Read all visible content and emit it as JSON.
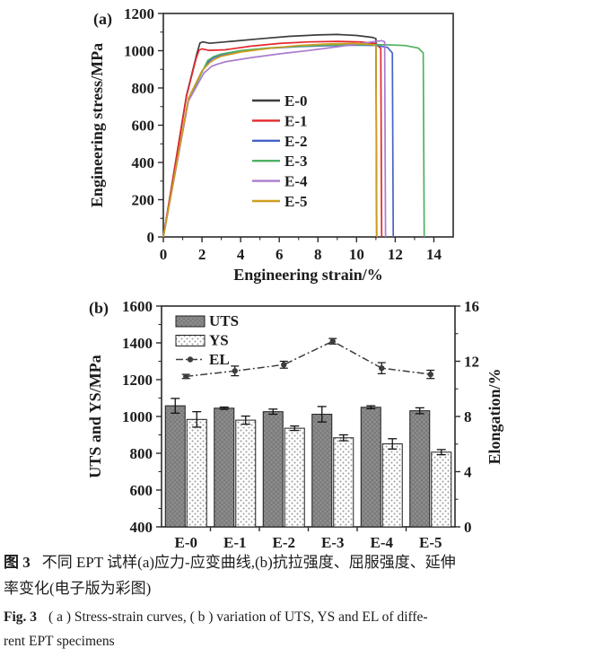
{
  "figure": {
    "caption": {
      "zh": {
        "label": "图 3",
        "line1": "不同 EPT 试样(a)应力-应变曲线,(b)抗拉强度、屈服强度、延伸",
        "line2": "率变化(电子版为彩图)"
      },
      "en": {
        "label": "Fig. 3",
        "line1": "( a ) Stress-strain curves, ( b ) variation of UTS, YS and EL of diffe-",
        "line2": "rent EPT specimens"
      }
    }
  },
  "chart_data": [
    {
      "type": "line",
      "panel_label": "(a)",
      "xlabel": "Engineering strain/%",
      "ylabel": "Engineering stress/MPa",
      "xlim": [
        0,
        15
      ],
      "ylim": [
        0,
        1200
      ],
      "xticks": [
        0,
        2,
        4,
        6,
        8,
        10,
        12,
        14
      ],
      "x_minor_step": 1,
      "yticks": [
        0,
        200,
        400,
        600,
        800,
        1000,
        1200
      ],
      "y_minor_step": 100,
      "grid": false,
      "legend_position": "inside-center-right",
      "series": [
        {
          "name": "E-0",
          "color": "#3d3d3d",
          "points": [
            [
              0,
              0
            ],
            [
              1.2,
              760
            ],
            [
              1.75,
              990
            ],
            [
              1.9,
              1042
            ],
            [
              2.05,
              1047
            ],
            [
              2.4,
              1040
            ],
            [
              3.5,
              1050
            ],
            [
              5,
              1064
            ],
            [
              6.5,
              1077
            ],
            [
              8,
              1085
            ],
            [
              9,
              1087
            ],
            [
              10,
              1082
            ],
            [
              10.8,
              1072
            ],
            [
              11.0,
              1065
            ],
            [
              11.04,
              0
            ]
          ]
        },
        {
          "name": "E-1",
          "color": "#e2282e",
          "points": [
            [
              0,
              0
            ],
            [
              1.2,
              755
            ],
            [
              1.7,
              960
            ],
            [
              1.85,
              1003
            ],
            [
              2.0,
              1010
            ],
            [
              2.35,
              1002
            ],
            [
              3.2,
              1005
            ],
            [
              4.5,
              1024
            ],
            [
              6,
              1039
            ],
            [
              7.5,
              1047
            ],
            [
              9,
              1050
            ],
            [
              10.2,
              1047
            ],
            [
              11.0,
              1038
            ],
            [
              11.25,
              1012
            ],
            [
              11.3,
              0
            ]
          ]
        },
        {
          "name": "E-2",
          "color": "#4663c8",
          "points": [
            [
              0,
              0
            ],
            [
              1.3,
              740
            ],
            [
              2.0,
              890
            ],
            [
              2.35,
              942
            ],
            [
              2.6,
              962
            ],
            [
              3,
              978
            ],
            [
              4,
              998
            ],
            [
              5.5,
              1013
            ],
            [
              7,
              1022
            ],
            [
              8.5,
              1027
            ],
            [
              10,
              1030
            ],
            [
              11,
              1028
            ],
            [
              11.6,
              1018
            ],
            [
              11.85,
              988
            ],
            [
              11.9,
              0
            ]
          ]
        },
        {
          "name": "E-3",
          "color": "#4fb163",
          "points": [
            [
              0,
              0
            ],
            [
              1.3,
              735
            ],
            [
              2.0,
              885
            ],
            [
              2.3,
              948
            ],
            [
              2.6,
              968
            ],
            [
              3,
              982
            ],
            [
              4,
              1001
            ],
            [
              5.5,
              1015
            ],
            [
              7,
              1024
            ],
            [
              8.5,
              1030
            ],
            [
              10,
              1033
            ],
            [
              11.5,
              1032
            ],
            [
              12.5,
              1028
            ],
            [
              13.2,
              1014
            ],
            [
              13.45,
              988
            ],
            [
              13.5,
              0
            ]
          ]
        },
        {
          "name": "E-4",
          "color": "#a97bcd",
          "points": [
            [
              0,
              0
            ],
            [
              1.3,
              730
            ],
            [
              2.1,
              880
            ],
            [
              2.5,
              916
            ],
            [
              2.8,
              928
            ],
            [
              3.2,
              940
            ],
            [
              4.5,
              962
            ],
            [
              6,
              983
            ],
            [
              7.5,
              1001
            ],
            [
              9,
              1021
            ],
            [
              10,
              1035
            ],
            [
              10.8,
              1047
            ],
            [
              11.3,
              1054
            ],
            [
              11.45,
              1048
            ],
            [
              11.5,
              0
            ]
          ]
        },
        {
          "name": "E-5",
          "color": "#cf9d20",
          "points": [
            [
              0,
              0
            ],
            [
              1.3,
              745
            ],
            [
              2.0,
              892
            ],
            [
              2.4,
              936
            ],
            [
              2.7,
              956
            ],
            [
              3,
              970
            ],
            [
              4,
              993
            ],
            [
              5.5,
              1013
            ],
            [
              7,
              1028
            ],
            [
              8.5,
              1036
            ],
            [
              9.8,
              1039
            ],
            [
              10.7,
              1034
            ],
            [
              11.0,
              1027
            ],
            [
              11.05,
              0
            ]
          ]
        }
      ]
    },
    {
      "type": "bar",
      "panel_label": "(b)",
      "categories": [
        "E-0",
        "E-1",
        "E-2",
        "E-3",
        "E-4",
        "E-5"
      ],
      "left_axis": {
        "label": "UTS and YS/MPa",
        "lim": [
          400,
          1600
        ],
        "ticks": [
          400,
          600,
          800,
          1000,
          1200,
          1400,
          1600
        ],
        "minor_step": 100
      },
      "right_axis": {
        "label": "Elongation/%",
        "lim": [
          0,
          16
        ],
        "ticks": [
          0,
          4,
          8,
          12,
          16
        ],
        "minor_step": 2
      },
      "grid": false,
      "legend_position": "inside-top-left",
      "bar_series": [
        {
          "name": "UTS",
          "style": "hatch",
          "fill": "#8e8e8e",
          "values": [
            1058,
            1045,
            1026,
            1012,
            1050,
            1031
          ],
          "errors": [
            40,
            6,
            14,
            42,
            8,
            16
          ]
        },
        {
          "name": "YS",
          "style": "dots",
          "fill": "#ffffff",
          "values": [
            984,
            980,
            936,
            884,
            851,
            806
          ],
          "errors": [
            42,
            22,
            12,
            16,
            28,
            14
          ]
        }
      ],
      "line_series": {
        "name": "EL",
        "axis": "right",
        "color": "#3d3d3d",
        "values": [
          10.9,
          11.3,
          11.75,
          13.45,
          11.5,
          11.05
        ],
        "errors": [
          0.15,
          0.35,
          0.25,
          0.2,
          0.4,
          0.3
        ]
      }
    }
  ]
}
